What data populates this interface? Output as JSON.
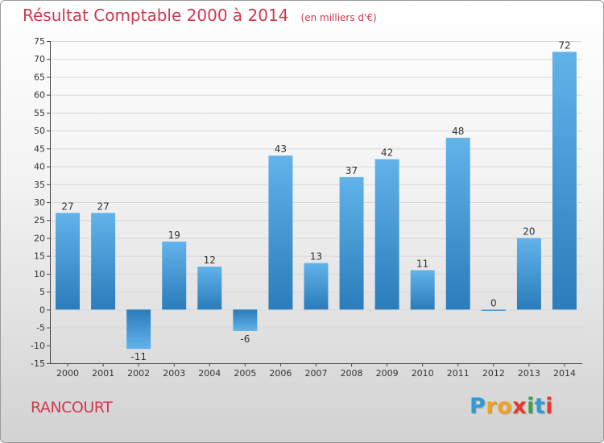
{
  "header": {
    "title": "Résultat Comptable 2000 à 2014",
    "subtitle": "(en milliers d'€)"
  },
  "footer": {
    "commune": "RANCOURT",
    "logo_text": "Proxiti",
    "logo_letters": [
      "P",
      "r",
      "o",
      "x",
      "i",
      "t",
      "i"
    ],
    "logo_colors": [
      "#2e9bd6",
      "#f2a21b",
      "#f2a21b",
      "#e23a2e",
      "#3aa548",
      "#2e9bd6",
      "#e23a2e"
    ]
  },
  "chart_data": {
    "type": "bar",
    "title": "Résultat Comptable 2000 à 2014",
    "subtitle": "(en milliers d'€)",
    "xlabel": "",
    "ylabel": "",
    "categories": [
      "2000",
      "2001",
      "2002",
      "2003",
      "2004",
      "2005",
      "2006",
      "2007",
      "2008",
      "2009",
      "2010",
      "2011",
      "2012",
      "2013",
      "2014"
    ],
    "values": [
      27,
      27,
      -11,
      19,
      12,
      -6,
      43,
      13,
      37,
      42,
      11,
      48,
      0,
      20,
      72
    ],
    "data_labels": [
      "27",
      "27",
      "-11",
      "19",
      "12",
      "-6",
      "43",
      "13",
      "37",
      "42",
      "11",
      "48",
      "0",
      "20",
      "72"
    ],
    "ylim": [
      -15,
      75
    ],
    "yticks": [
      -15,
      -10,
      -5,
      0,
      5,
      10,
      15,
      20,
      25,
      30,
      35,
      40,
      45,
      50,
      55,
      60,
      65,
      70,
      75
    ],
    "grid": true,
    "legend": "none",
    "colors": {
      "bar_light": "#62b3ea",
      "bar_dark": "#2a7cbb",
      "grid": "#d8d8d8",
      "axis": "#444444"
    }
  }
}
